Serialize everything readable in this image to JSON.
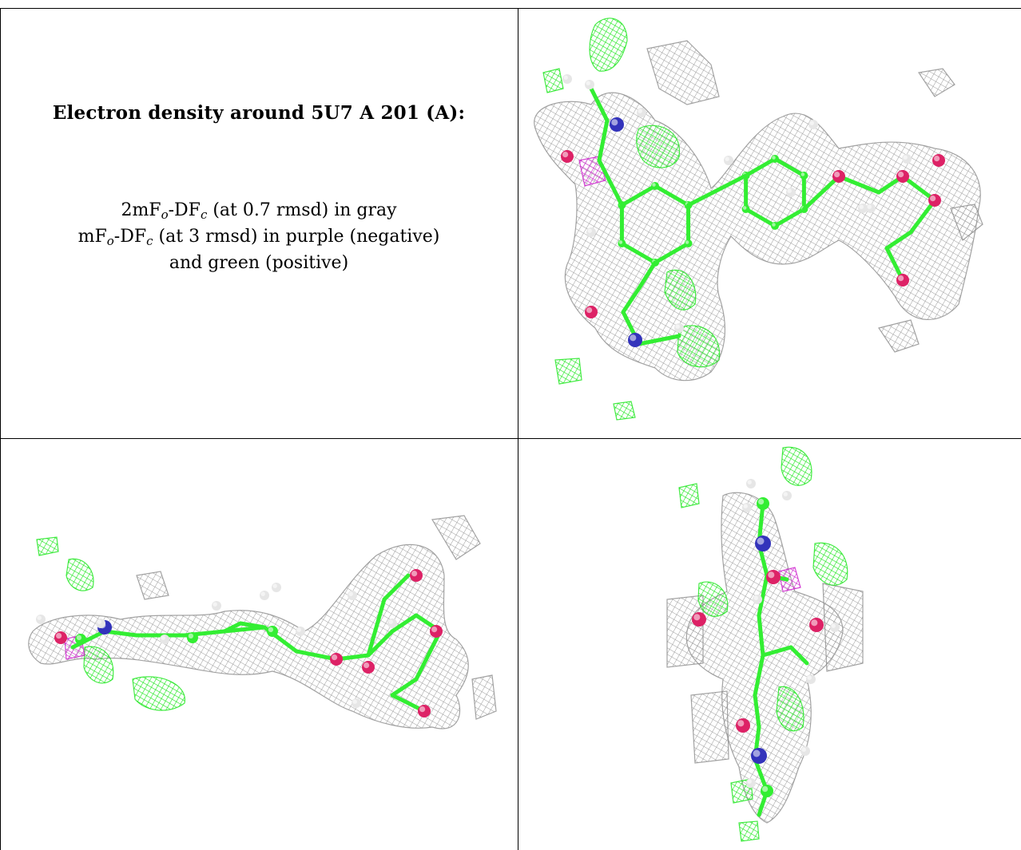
{
  "heading": "Electron density around 5U7 A 201 (A):",
  "legend": {
    "map1": {
      "prefix": "2mF",
      "sub1": "o",
      "mid": "-DF",
      "sub2": "c",
      "suffix": " (at 0.7 rmsd) in gray"
    },
    "map2": {
      "prefix": "mF",
      "sub1": "o",
      "mid": "-DF",
      "sub2": "c",
      "suffix": " (at 3 rmsd) in purple (negative)"
    },
    "line3": "and green (positive)"
  },
  "colors": {
    "mesh_2fofc": "#9a9a9a",
    "mesh_positive": "#19e619",
    "mesh_negative": "#cc1acc",
    "carbon": "#33ee33",
    "oxygen": "#dd2266",
    "nitrogen": "#3333bb",
    "hydrogen": "#e6e6e6",
    "border": "#000000"
  },
  "views": [
    {
      "name": "top-view",
      "icon": "electron-density-molecule-view"
    },
    {
      "name": "side-view",
      "icon": "electron-density-molecule-view"
    },
    {
      "name": "end-view",
      "icon": "electron-density-molecule-view"
    }
  ]
}
